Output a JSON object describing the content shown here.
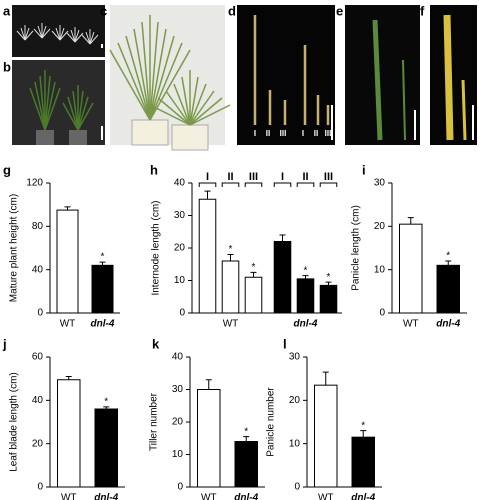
{
  "photo_panels": [
    {
      "label": "a"
    },
    {
      "label": "b"
    },
    {
      "label": "c"
    },
    {
      "label": "d",
      "labels": [
        "I",
        "II",
        "III",
        "I",
        "II",
        "III"
      ]
    },
    {
      "label": "e"
    },
    {
      "label": "f"
    }
  ],
  "chart_data": [
    {
      "type": "bar",
      "panel": "g",
      "y_label": "Mature plant height (cm)",
      "categories": [
        "WT",
        "dnl-4"
      ],
      "series": [
        {
          "values": [
            95,
            44
          ],
          "errors": [
            3,
            3
          ],
          "colors": [
            "#ffffff",
            "#000000"
          ],
          "significant": [
            false,
            true
          ]
        }
      ],
      "significance_mark": "*",
      "ylim": [
        0,
        120
      ],
      "yticks": [
        0,
        40,
        80,
        120
      ]
    },
    {
      "type": "grouped_bar",
      "panel": "h",
      "y_label": "Internode length (cm)",
      "categories": [
        "I",
        "II",
        "III"
      ],
      "series": [
        {
          "name": "WT",
          "color": "#ffffff",
          "values": [
            35,
            16,
            11
          ],
          "errors": [
            2.5,
            2,
            1.5
          ],
          "significant": [
            false,
            true,
            true
          ]
        },
        {
          "name": "dnl-4",
          "color": "#000000",
          "values": [
            22,
            10.5,
            8.5
          ],
          "errors": [
            2,
            1,
            1
          ],
          "significant": [
            false,
            true,
            true
          ]
        }
      ],
      "significance_mark": "*",
      "ylim": [
        0,
        40
      ],
      "yticks": [
        0,
        10,
        20,
        30,
        40
      ]
    },
    {
      "type": "bar",
      "panel": "i",
      "y_label": "Panicle length (cm)",
      "categories": [
        "WT",
        "dnl-4"
      ],
      "series": [
        {
          "values": [
            20.5,
            11
          ],
          "errors": [
            1.5,
            1
          ],
          "colors": [
            "#ffffff",
            "#000000"
          ],
          "significant": [
            false,
            true
          ]
        }
      ],
      "significance_mark": "*",
      "ylim": [
        0,
        30
      ],
      "yticks": [
        0,
        10,
        20,
        30
      ]
    },
    {
      "type": "bar",
      "panel": "j",
      "y_label": "Leaf blade length (cm)",
      "categories": [
        "WT",
        "dnl-4"
      ],
      "series": [
        {
          "values": [
            49.5,
            36
          ],
          "errors": [
            1.5,
            1
          ],
          "colors": [
            "#ffffff",
            "#000000"
          ],
          "significant": [
            false,
            true
          ]
        }
      ],
      "significance_mark": "*",
      "ylim": [
        0,
        60
      ],
      "yticks": [
        0,
        20,
        40,
        60
      ]
    },
    {
      "type": "bar",
      "panel": "k",
      "y_label": "Tiller number",
      "categories": [
        "WT",
        "dnl-4"
      ],
      "series": [
        {
          "values": [
            30,
            14
          ],
          "errors": [
            3,
            1.5
          ],
          "colors": [
            "#ffffff",
            "#000000"
          ],
          "significant": [
            false,
            true
          ]
        }
      ],
      "significance_mark": "*",
      "ylim": [
        0,
        40
      ],
      "yticks": [
        0,
        10,
        20,
        30,
        40
      ]
    },
    {
      "type": "bar",
      "panel": "l",
      "y_label": "Panicle number",
      "categories": [
        "WT",
        "dnl-4"
      ],
      "series": [
        {
          "values": [
            23.5,
            11.5
          ],
          "errors": [
            3,
            1.5
          ],
          "colors": [
            "#ffffff",
            "#000000"
          ],
          "significant": [
            false,
            true
          ]
        }
      ],
      "significance_mark": "*",
      "ylim": [
        0,
        30
      ],
      "yticks": [
        0,
        10,
        20,
        30
      ]
    }
  ]
}
